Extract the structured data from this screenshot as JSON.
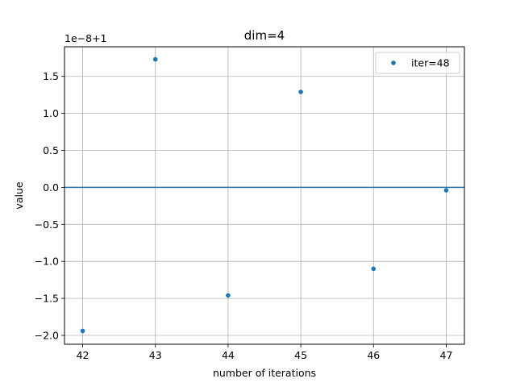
{
  "chart_data": {
    "type": "scatter",
    "title": "dim=4",
    "xlabel": "number of iterations",
    "ylabel": "value",
    "y_offset_label": "1e−8+1",
    "xlim": [
      41.75,
      47.25
    ],
    "ylim": [
      -2.12,
      1.9
    ],
    "xticks": [
      42,
      43,
      44,
      45,
      46,
      47
    ],
    "xtick_labels": [
      "42",
      "43",
      "44",
      "45",
      "46",
      "47"
    ],
    "yticks": [
      -2.0,
      -1.5,
      -1.0,
      -0.5,
      0.0,
      0.5,
      1.0,
      1.5
    ],
    "ytick_labels": [
      "−2.0",
      "−1.5",
      "−1.0",
      "−0.5",
      "0.0",
      "0.5",
      "1.0",
      "1.5"
    ],
    "grid": true,
    "legend_position": "top-right",
    "reference_line_y": 0.0,
    "series": [
      {
        "name": "iter=48",
        "color": "#1f77b4",
        "x": [
          42,
          43,
          44,
          45,
          46,
          47
        ],
        "y": [
          -1.94,
          1.73,
          -1.46,
          1.29,
          -1.1,
          -0.04
        ]
      }
    ]
  }
}
